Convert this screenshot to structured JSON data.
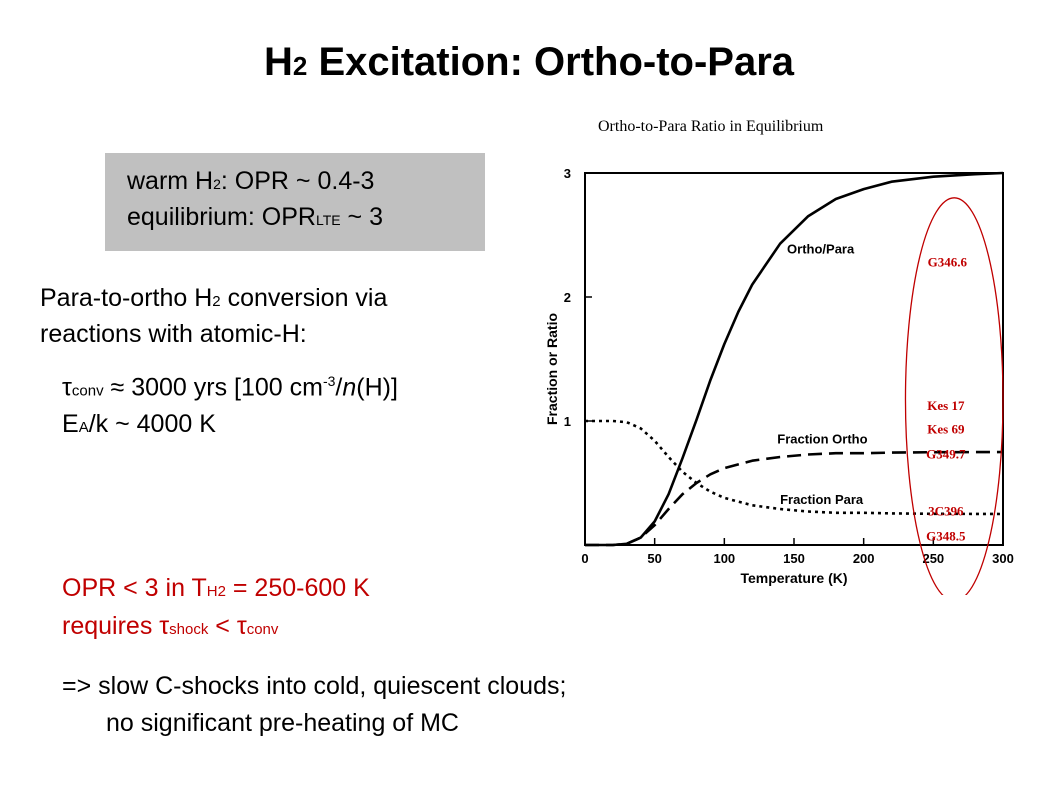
{
  "slide": {
    "title_main": "H",
    "title_sub": "2",
    "title_rest": " Excitation: Ortho-to-Para",
    "box": {
      "line1_a": "warm H",
      "line1_sub": "2",
      "line1_b": ": OPR ~ 0.4-3",
      "line2_a": "equilibrium: OPR",
      "line2_sub": "LTE",
      "line2_b": " ~ 3"
    },
    "conversion": {
      "line1_a": "Para-to-ortho H",
      "line1_sub": "2",
      "line1_b": " conversion via",
      "line2": "reactions with atomic-H:"
    },
    "tau": {
      "sym": "τ",
      "sub": "conv",
      "a": " ≈ 3000 yrs [100 cm",
      "sup": "-3",
      "b": "/",
      "italic": "n",
      "c": "(H)]"
    },
    "ea": {
      "a": "E",
      "sub": "A",
      "b": "/k ~ 4000 K"
    },
    "opr": {
      "a": "OPR < 3 in T",
      "sub": "H2",
      "b": " = 250-600 K",
      "req_a": " requires τ",
      "req_sub1": "shock",
      "req_b": " < τ",
      "req_sub2": "conv"
    },
    "conclusion": {
      "line1": "=> slow C-shocks into cold, quiescent clouds;",
      "line2": "no significant pre-heating of MC"
    }
  },
  "chart_data": {
    "type": "line",
    "title": "Ortho-to-Para Ratio in Equilibrium",
    "xlabel": "Temperature (K)",
    "ylabel": "Fraction or Ratio",
    "xlim": [
      0,
      300
    ],
    "ylim": [
      0,
      3
    ],
    "xticks": [
      0,
      50,
      100,
      150,
      200,
      250,
      300
    ],
    "yticks": [
      1,
      2,
      3
    ],
    "x": [
      0,
      20,
      30,
      40,
      50,
      60,
      70,
      80,
      90,
      100,
      110,
      120,
      140,
      160,
      180,
      200,
      220,
      250,
      280,
      300
    ],
    "series": [
      {
        "name": "Ortho/Para",
        "style": "solid",
        "values": [
          0,
          0,
          0.01,
          0.06,
          0.19,
          0.41,
          0.7,
          1.01,
          1.33,
          1.62,
          1.88,
          2.1,
          2.43,
          2.65,
          2.79,
          2.87,
          2.93,
          2.97,
          2.99,
          3.0
        ]
      },
      {
        "name": "Fraction Ortho",
        "style": "dashed",
        "values": [
          0,
          0,
          0.01,
          0.06,
          0.16,
          0.29,
          0.41,
          0.5,
          0.57,
          0.62,
          0.65,
          0.68,
          0.71,
          0.73,
          0.74,
          0.74,
          0.745,
          0.748,
          0.749,
          0.75
        ]
      },
      {
        "name": "Fraction Para",
        "style": "dotted",
        "values": [
          1.0,
          1.0,
          0.99,
          0.94,
          0.84,
          0.71,
          0.59,
          0.5,
          0.43,
          0.38,
          0.35,
          0.32,
          0.29,
          0.27,
          0.26,
          0.26,
          0.255,
          0.252,
          0.251,
          0.25
        ]
      }
    ],
    "annotations": [
      {
        "text": "G346.6",
        "x": 260,
        "y": 2.28
      },
      {
        "text": "Kes 17",
        "x": 259,
        "y": 1.12
      },
      {
        "text": "Kes 69",
        "x": 259,
        "y": 0.93
      },
      {
        "text": "G349.7",
        "x": 259,
        "y": 0.73
      },
      {
        "text": "3C396",
        "x": 259,
        "y": 0.27
      },
      {
        "text": "G348.5",
        "x": 259,
        "y": 0.07
      }
    ],
    "ellipse": {
      "x_range": [
        230,
        300
      ],
      "y_range": [
        -0.45,
        2.8
      ],
      "color": "#c00000"
    },
    "colors": {
      "curves": "#000000",
      "annotations": "#c00000"
    }
  }
}
